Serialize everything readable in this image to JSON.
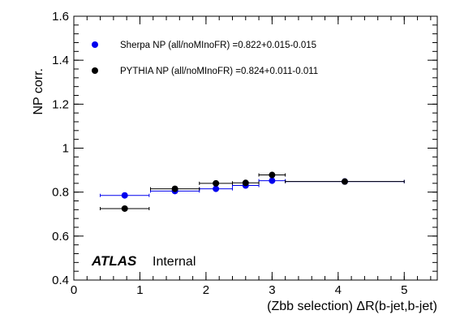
{
  "chart_data": {
    "type": "scatter",
    "xlabel": "(Zbb selection) ΔR(b-jet,b-jet)",
    "ylabel": "NP corr.",
    "xlim": [
      0,
      5.5
    ],
    "ylim": [
      0.4,
      1.6
    ],
    "xticks": [
      0,
      1,
      2,
      3,
      4,
      5
    ],
    "yticks": [
      0.4,
      0.6,
      0.8,
      1.0,
      1.2,
      1.4,
      1.6
    ],
    "xtick_labels": [
      "0",
      "1",
      "2",
      "3",
      "4",
      "5"
    ],
    "ytick_labels": [
      "0.4",
      "0.6",
      "0.8",
      "1",
      "1.2",
      "1.4",
      "1.6"
    ],
    "grid": false,
    "legend_position": "top-left",
    "series": [
      {
        "name": "Sherpa NP (all/noMInoFR) =0.822+0.015-0.015",
        "color": "#0000ee",
        "x": [
          0.77,
          1.53,
          2.15,
          2.6,
          3.0,
          4.1
        ],
        "xerr": [
          0.37,
          0.37,
          0.25,
          0.2,
          0.2,
          0.9
        ],
        "y": [
          0.785,
          0.805,
          0.815,
          0.83,
          0.852,
          0.848
        ],
        "yerr": [
          0.012,
          0.008,
          0.008,
          0.008,
          0.008,
          0.006
        ]
      },
      {
        "name": "PYTHIA NP (all/noMInoFR) =0.824+0.011-0.011",
        "color": "#000000",
        "x": [
          0.77,
          1.53,
          2.15,
          2.6,
          3.0,
          4.1
        ],
        "xerr": [
          0.37,
          0.37,
          0.25,
          0.2,
          0.2,
          0.9
        ],
        "y": [
          0.725,
          0.815,
          0.84,
          0.842,
          0.878,
          0.848
        ],
        "yerr": [
          0.006,
          0.006,
          0.006,
          0.006,
          0.006,
          0.006
        ]
      }
    ],
    "annotations": {
      "experiment": "ATLAS",
      "status": "Internal"
    }
  }
}
